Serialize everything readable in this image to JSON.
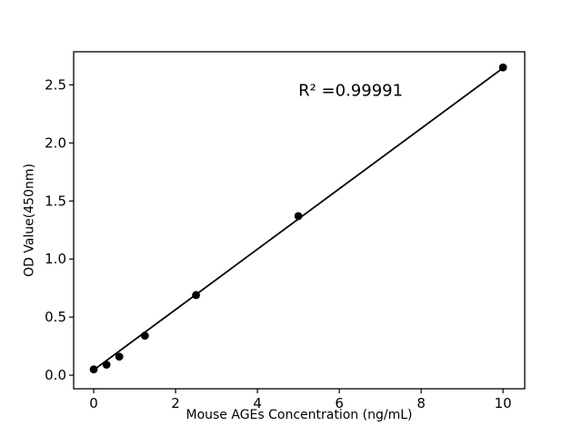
{
  "figure": {
    "background": "#ffffff",
    "foreground": "#000000"
  },
  "chart_data": {
    "type": "scatter",
    "title": "",
    "xlabel": "Mouse AGEs Concentration (ng/mL)",
    "ylabel": "OD Value(450nm)",
    "annotation": {
      "text": "R² =0.99991",
      "x": 5.0,
      "y": 2.45
    },
    "xlim": [
      -0.49,
      10.53
    ],
    "ylim": [
      -0.117,
      2.785
    ],
    "grid": false,
    "legend": null,
    "x_ticks": [
      {
        "value": 0,
        "label": "0"
      },
      {
        "value": 2,
        "label": "2"
      },
      {
        "value": 4,
        "label": "4"
      },
      {
        "value": 6,
        "label": "6"
      },
      {
        "value": 8,
        "label": "8"
      },
      {
        "value": 10,
        "label": "10"
      }
    ],
    "y_ticks": [
      {
        "value": 0.0,
        "label": "0.0"
      },
      {
        "value": 0.5,
        "label": "0.5"
      },
      {
        "value": 1.0,
        "label": "1.0"
      },
      {
        "value": 1.5,
        "label": "1.5"
      },
      {
        "value": 2.0,
        "label": "2.0"
      },
      {
        "value": 2.5,
        "label": "2.5"
      }
    ],
    "points": [
      {
        "x": 0,
        "y": 0.05
      },
      {
        "x": 0.313,
        "y": 0.09
      },
      {
        "x": 0.625,
        "y": 0.16
      },
      {
        "x": 1.25,
        "y": 0.34
      },
      {
        "x": 2.5,
        "y": 0.69
      },
      {
        "x": 5,
        "y": 1.37
      },
      {
        "x": 10,
        "y": 2.65
      }
    ],
    "fit_line": {
      "x1": 0,
      "y1": 0.045,
      "x2": 10,
      "y2": 2.645
    },
    "colors": {
      "marker": "#000000",
      "line": "#000000",
      "text": "#000000",
      "background": "#ffffff"
    }
  }
}
